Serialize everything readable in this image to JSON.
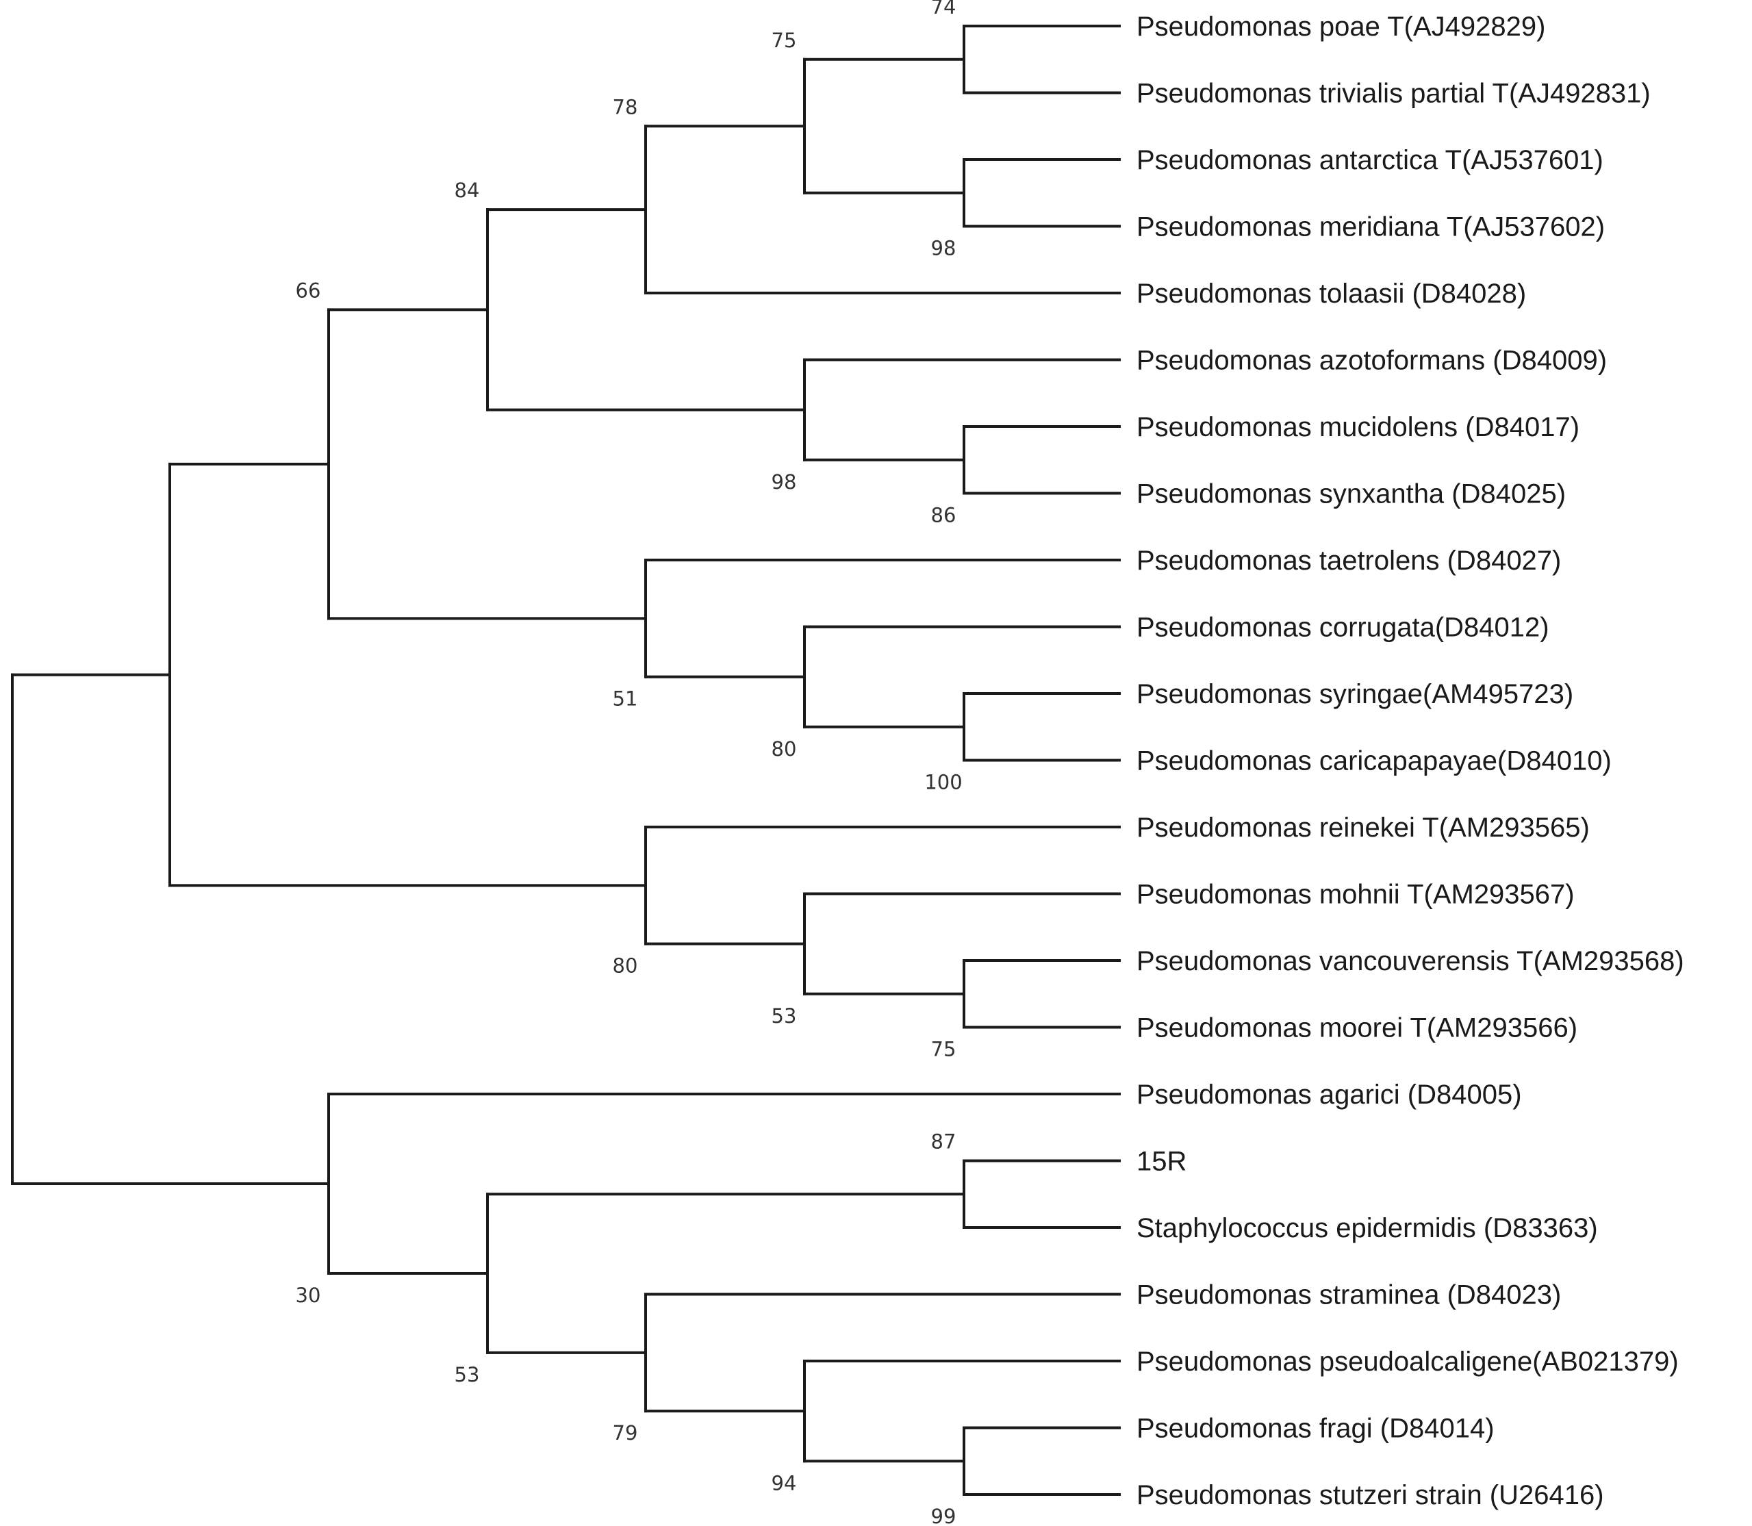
{
  "tree": {
    "leaves": [
      {
        "id": "L0",
        "label": "Pseudomonas poae T(AJ492829)"
      },
      {
        "id": "L1",
        "label": "Pseudomonas trivialis partial T(AJ492831)"
      },
      {
        "id": "L2",
        "label": "Pseudomonas antarctica T(AJ537601)"
      },
      {
        "id": "L3",
        "label": "Pseudomonas meridiana T(AJ537602)"
      },
      {
        "id": "L4",
        "label": "Pseudomonas tolaasii (D84028)"
      },
      {
        "id": "L5",
        "label": "Pseudomonas azotoformans (D84009)"
      },
      {
        "id": "L6",
        "label": "Pseudomonas mucidolens (D84017)"
      },
      {
        "id": "L7",
        "label": "Pseudomonas synxantha (D84025)"
      },
      {
        "id": "L8",
        "label": "Pseudomonas taetrolens (D84027)"
      },
      {
        "id": "L9",
        "label": "Pseudomonas corrugata(D84012)"
      },
      {
        "id": "L10",
        "label": "Pseudomonas syringae(AM495723)"
      },
      {
        "id": "L11",
        "label": "Pseudomonas caricapapayae(D84010)"
      },
      {
        "id": "L12",
        "label": "Pseudomonas reinekei T(AM293565)"
      },
      {
        "id": "L13",
        "label": "Pseudomonas mohnii T(AM293567)"
      },
      {
        "id": "L14",
        "label": "Pseudomonas vancouverensis T(AM293568)"
      },
      {
        "id": "L15",
        "label": "Pseudomonas moorei T(AM293566)"
      },
      {
        "id": "L16",
        "label": "Pseudomonas agarici (D84005)"
      },
      {
        "id": "L17",
        "label": "15R"
      },
      {
        "id": "L18",
        "label": "Staphylococcus epidermidis (D83363)"
      },
      {
        "id": "L19",
        "label": "Pseudomonas straminea (D84023)"
      },
      {
        "id": "L20",
        "label": "Pseudomonas pseudoalcaligene(AB021379)"
      },
      {
        "id": "L21",
        "label": "Pseudomonas fragi (D84014)"
      },
      {
        "id": "L22",
        "label": "Pseudomonas stutzeri strain (U26416)"
      }
    ],
    "nodes": [
      {
        "id": "N_poae_triv",
        "support": "74",
        "children": [
          "L0",
          "L1"
        ]
      },
      {
        "id": "N_ant_mer",
        "support": "98",
        "children": [
          "L2",
          "L3"
        ]
      },
      {
        "id": "N_75a",
        "support": "75",
        "children": [
          "N_poae_triv",
          "N_ant_mer"
        ]
      },
      {
        "id": "N_78",
        "support": "78",
        "children": [
          "N_75a",
          "L4"
        ]
      },
      {
        "id": "N_muc_syn",
        "support": "86",
        "children": [
          "L6",
          "L7"
        ]
      },
      {
        "id": "N_azo",
        "support": "98",
        "children": [
          "L5",
          "N_muc_syn"
        ]
      },
      {
        "id": "N_84",
        "support": "84",
        "children": [
          "N_78",
          "N_azo"
        ]
      },
      {
        "id": "N_syr_car",
        "support": "100",
        "children": [
          "L10",
          "L11"
        ]
      },
      {
        "id": "N_cor",
        "support": "80",
        "children": [
          "L9",
          "N_syr_car"
        ]
      },
      {
        "id": "N_51",
        "support": "51",
        "children": [
          "L8",
          "N_cor"
        ]
      },
      {
        "id": "N_66",
        "support": "66",
        "children": [
          "N_84",
          "N_51"
        ]
      },
      {
        "id": "N_van_moo",
        "support": "75",
        "children": [
          "L14",
          "L15"
        ]
      },
      {
        "id": "N_53a",
        "support": "53",
        "children": [
          "L13",
          "N_van_moo"
        ]
      },
      {
        "id": "N_80b",
        "support": "80",
        "children": [
          "L12",
          "N_53a"
        ]
      },
      {
        "id": "N_upper",
        "support": "",
        "children": [
          "N_66",
          "N_80b"
        ]
      },
      {
        "id": "N_15R",
        "support": "87",
        "children": [
          "L17",
          "L18"
        ]
      },
      {
        "id": "N_fra_stu",
        "support": "99",
        "children": [
          "L21",
          "L22"
        ]
      },
      {
        "id": "N_94",
        "support": "94",
        "children": [
          "L20",
          "N_fra_stu"
        ]
      },
      {
        "id": "N_79",
        "support": "79",
        "children": [
          "L19",
          "N_94"
        ]
      },
      {
        "id": "N_53b",
        "support": "53",
        "children": [
          "N_15R",
          "N_79"
        ]
      },
      {
        "id": "N_30",
        "support": "30",
        "children": [
          "L16",
          "N_53b"
        ]
      },
      {
        "id": "N_root",
        "support": "",
        "children": [
          "N_upper",
          "N_30"
        ]
      }
    ],
    "root": "N_root"
  }
}
